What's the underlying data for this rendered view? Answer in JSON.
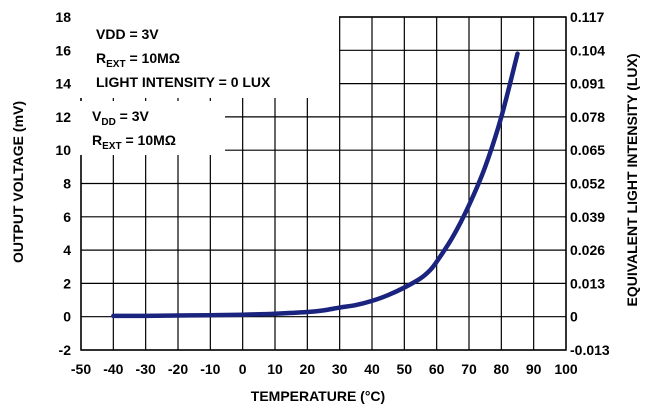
{
  "chart_data": {
    "type": "line",
    "title": "",
    "xlabel": "TEMPERATURE (°C)",
    "ylabel": "OUTPUT VOLTAGE (mV)",
    "y2label": "EQUIVALENT LIGHT INTENSITY (LUX)",
    "xlim": [
      -50,
      100
    ],
    "ylim": [
      -2,
      18
    ],
    "x_ticks": [
      "-50",
      "-40",
      "-30",
      "-20",
      "-10",
      "0",
      "10",
      "20",
      "30",
      "40",
      "50",
      "60",
      "70",
      "80",
      "90",
      "100"
    ],
    "y_ticks": [
      "-2",
      "0",
      "2",
      "4",
      "6",
      "8",
      "10",
      "12",
      "14",
      "16",
      "18"
    ],
    "y2_ticks": [
      "-0.013",
      "0",
      "0.013",
      "0.026",
      "0.039",
      "0.052",
      "0.065",
      "0.078",
      "0.091",
      "0.104",
      "0.117"
    ],
    "grid": true,
    "series": [
      {
        "color": "#1a237e",
        "x": [
          -40,
          -30,
          -20,
          -10,
          0,
          10,
          20,
          25,
          30,
          35,
          40,
          45,
          50,
          55,
          58,
          60,
          65,
          70,
          75,
          80,
          85
        ],
        "y": [
          0.05,
          0.05,
          0.07,
          0.09,
          0.12,
          0.18,
          0.28,
          0.38,
          0.55,
          0.7,
          0.95,
          1.3,
          1.75,
          2.3,
          2.8,
          3.3,
          4.8,
          6.7,
          9.0,
          12.0,
          15.8
        ]
      }
    ],
    "annotation_box": {
      "lines": [
        {
          "main": "VDD = 3V",
          "sub": "",
          "tail": ""
        },
        {
          "main": "R",
          "sub": "EXT",
          "tail": " = 10MΩ"
        },
        {
          "main": "LIGHT INTENSITY = 0 LUX",
          "sub": "",
          "tail": ""
        }
      ]
    },
    "annotation_plain": {
      "lines": [
        {
          "main": "V",
          "sub": "DD",
          "tail": " = 3V"
        },
        {
          "main": "R",
          "sub": "EXT",
          "tail": " = 10MΩ"
        }
      ]
    }
  }
}
